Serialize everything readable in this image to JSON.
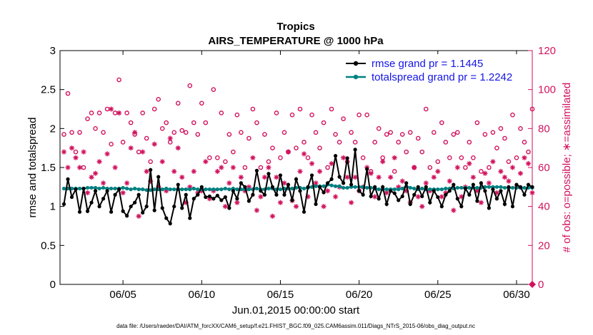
{
  "chart_data": {
    "type": "line",
    "title": "Tropics",
    "subtitle": "AIRS_TEMPERATURE @ 1000 hPa",
    "xlabel": "Jun.01,2015 00:00:00 start",
    "ylabel": "rmse and totalspread",
    "y2label": "# of obs: o=possible; ∗=assimilated",
    "footnote": "data file: /Users/raeder/DAI/ATM_forcXX/CAM6_setup/f.e21.FHIST_BGC.f09_025.CAM6assim.011/Diags_NTrS_2015-06/obs_diag_output.nc",
    "xlim": [
      1,
      31
    ],
    "ylim": [
      0,
      3
    ],
    "y2lim": [
      0,
      120
    ],
    "xticks": [
      5,
      10,
      15,
      20,
      25,
      30
    ],
    "xtick_labels": [
      "06/05",
      "06/10",
      "06/15",
      "06/20",
      "06/25",
      "06/30"
    ],
    "yticks": [
      0,
      0.5,
      1,
      1.5,
      2,
      2.5,
      3
    ],
    "ytick_labels": [
      "0",
      "0.5",
      "1",
      "1.5",
      "2",
      "2.5",
      "3"
    ],
    "y2ticks": [
      0,
      20,
      40,
      60,
      80,
      100,
      120
    ],
    "y2tick_labels": [
      "0",
      "20",
      "40",
      "60",
      "80",
      "100",
      "120"
    ],
    "legend": [
      {
        "label": "rmse grand pr = 1.1445",
        "color": "#000000",
        "marker": "filled-circle"
      },
      {
        "label": "totalspread grand pr = 1.2242",
        "color": "#008080",
        "marker": "filled-circle"
      }
    ],
    "legend_location": "top-right",
    "colors": {
      "rmse": "#000000",
      "spread": "#008080",
      "obs": "#d1125e",
      "legend_text": "#1515e6"
    },
    "x": [
      1.25,
      1.5,
      1.75,
      2,
      2.25,
      2.5,
      2.75,
      3,
      3.25,
      3.5,
      3.75,
      4,
      4.25,
      4.5,
      4.75,
      5,
      5.25,
      5.5,
      5.75,
      6,
      6.25,
      6.5,
      6.75,
      7,
      7.25,
      7.5,
      7.75,
      8,
      8.25,
      8.5,
      8.75,
      9,
      9.25,
      9.5,
      9.75,
      10,
      10.25,
      10.5,
      10.75,
      11,
      11.25,
      11.5,
      11.75,
      12,
      12.25,
      12.5,
      12.75,
      13,
      13.25,
      13.5,
      13.75,
      14,
      14.25,
      14.5,
      14.75,
      15,
      15.25,
      15.5,
      15.75,
      16,
      16.25,
      16.5,
      16.75,
      17,
      17.25,
      17.5,
      17.75,
      18,
      18.25,
      18.5,
      18.75,
      19,
      19.25,
      19.5,
      19.75,
      20,
      20.25,
      20.5,
      20.75,
      21,
      21.25,
      21.5,
      21.75,
      22,
      22.25,
      22.5,
      22.75,
      23,
      23.25,
      23.5,
      23.75,
      24,
      24.25,
      24.5,
      24.75,
      25,
      25.25,
      25.5,
      25.75,
      26,
      26.25,
      26.5,
      26.75,
      27,
      27.25,
      27.5,
      27.75,
      28,
      28.25,
      28.5,
      28.75,
      29,
      29.25,
      29.5,
      29.75,
      30,
      30.25,
      30.5,
      30.75,
      31
    ],
    "series": [
      {
        "name": "rmse",
        "color": "#000000",
        "values": [
          1.03,
          1.35,
          1.12,
          1.22,
          0.93,
          1.23,
          0.94,
          1.05,
          1.2,
          1.0,
          1.1,
          1.2,
          0.93,
          1.15,
          1.22,
          0.94,
          0.88,
          1.0,
          1.05,
          1.15,
          0.92,
          1.0,
          1.47,
          0.95,
          1.38,
          0.98,
          0.85,
          0.78,
          1.0,
          1.28,
          0.98,
          1.15,
          0.85,
          1.1,
          1.15,
          1.25,
          1.12,
          1.13,
          1.1,
          1.14,
          1.08,
          1.12,
          0.98,
          1.2,
          1.1,
          1.3,
          1.25,
          1.07,
          1.15,
          1.46,
          1.2,
          1.15,
          1.42,
          1.25,
          1.15,
          1.4,
          1.15,
          1.28,
          1.08,
          1.35,
          1.2,
          0.93,
          1.25,
          1.4,
          1.03,
          1.25,
          1.18,
          1.3,
          1.35,
          1.65,
          1.38,
          1.3,
          1.62,
          1.28,
          1.73,
          1.2,
          1.15,
          1.48,
          1.13,
          1.25,
          1.1,
          1.25,
          1.03,
          1.2,
          1.17,
          1.08,
          1.13,
          1.3,
          1.03,
          1.15,
          1.25,
          1.13,
          1.25,
          1.05,
          1.2,
          1.12,
          1.0,
          1.15,
          1.2,
          1.28,
          1.1,
          1.0,
          1.23,
          1.15,
          1.28,
          1.07,
          1.3,
          1.2,
          0.98,
          1.22,
          1.1,
          1.2,
          1.03,
          1.25,
          1.0,
          1.28,
          1.25,
          1.15,
          1.28,
          1.25
        ]
      },
      {
        "name": "totalspread",
        "color": "#008080",
        "values": [
          1.23,
          1.23,
          1.23,
          1.23,
          1.23,
          1.23,
          1.24,
          1.24,
          1.24,
          1.23,
          1.24,
          1.23,
          1.23,
          1.23,
          1.23,
          1.24,
          1.23,
          1.22,
          1.23,
          1.22,
          1.22,
          1.21,
          1.21,
          1.22,
          1.22,
          1.22,
          1.23,
          1.22,
          1.22,
          1.22,
          1.22,
          1.22,
          1.22,
          1.23,
          1.22,
          1.22,
          1.22,
          1.22,
          1.22,
          1.22,
          1.22,
          1.23,
          1.22,
          1.23,
          1.22,
          1.22,
          1.22,
          1.22,
          1.22,
          1.23,
          1.22,
          1.22,
          1.23,
          1.23,
          1.22,
          1.22,
          1.23,
          1.23,
          1.23,
          1.24,
          1.24,
          1.23,
          1.24,
          1.25,
          1.26,
          1.26,
          1.26,
          1.28,
          1.27,
          1.26,
          1.26,
          1.24,
          1.24,
          1.25,
          1.25,
          1.25,
          1.25,
          1.24,
          1.24,
          1.23,
          1.22,
          1.22,
          1.22,
          1.22,
          1.22,
          1.22,
          1.23,
          1.26,
          1.24,
          1.23,
          1.22,
          1.23,
          1.22,
          1.22,
          1.22,
          1.22,
          1.22,
          1.23,
          1.23,
          1.23,
          1.24,
          1.24,
          1.24,
          1.24,
          1.24,
          1.24,
          1.24,
          1.25,
          1.25,
          1.25,
          1.25,
          1.25,
          1.24,
          1.24,
          1.24,
          1.24,
          1.24,
          1.24,
          1.24,
          1.24
        ]
      },
      {
        "name": "obs possible",
        "axis": "right",
        "marker": "open-circle",
        "color": "#d1125e",
        "values": [
          77,
          98,
          78,
          68,
          78,
          60,
          85,
          88,
          80,
          88,
          78,
          90,
          72,
          88,
          105,
          73,
          88,
          83,
          77,
          68,
          88,
          75,
          63,
          90,
          95,
          80,
          83,
          73,
          78,
          93,
          79,
          78,
          102,
          83,
          77,
          93,
          83,
          65,
          100,
          65,
          88,
          63,
          77,
          68,
          87,
          78,
          60,
          75,
          90,
          83,
          60,
          77,
          63,
          70,
          88,
          65,
          78,
          68,
          87,
          70,
          90,
          73,
          65,
          87,
          78,
          70,
          83,
          60,
          90,
          77,
          73,
          85,
          63,
          78,
          73,
          87,
          65,
          87,
          58,
          73,
          80,
          65,
          77,
          78,
          58,
          73,
          77,
          68,
          78,
          60,
          75,
          68,
          90,
          60,
          78,
          63,
          83,
          73,
          65,
          77,
          78,
          65,
          60,
          73,
          65,
          83,
          58,
          77,
          60,
          78,
          70,
          80,
          75,
          63,
          87,
          65,
          80,
          73,
          68,
          90
        ]
      },
      {
        "name": "obs assimilated",
        "axis": "right",
        "marker": "asterisk",
        "color": "#d1125e",
        "values": [
          68,
          60,
          70,
          65,
          60,
          68,
          47,
          55,
          57,
          63,
          52,
          67,
          90,
          60,
          88,
          47,
          52,
          70,
          78,
          35,
          68,
          58,
          53,
          72,
          50,
          63,
          48,
          75,
          58,
          70,
          55,
          42,
          50,
          58,
          47,
          48,
          63,
          44,
          48,
          58,
          60,
          40,
          52,
          60,
          42,
          55,
          48,
          50,
          65,
          38,
          45,
          55,
          60,
          35,
          55,
          42,
          52,
          68,
          43,
          40,
          58,
          67,
          45,
          62,
          52,
          58,
          40,
          48,
          62,
          45,
          50,
          65,
          55,
          42,
          55,
          48,
          50,
          60,
          57,
          45,
          55,
          63,
          47,
          55,
          65,
          50,
          53,
          48,
          42,
          60,
          45,
          40,
          52,
          48,
          55,
          58,
          45,
          47,
          53,
          38,
          60,
          45,
          50,
          62,
          55,
          48,
          42,
          57,
          52,
          63,
          47,
          58,
          55,
          53,
          60,
          50,
          57,
          65,
          62,
          47
        ]
      }
    ]
  }
}
